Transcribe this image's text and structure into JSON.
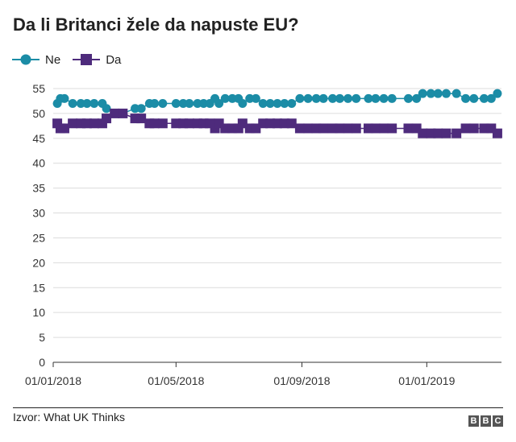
{
  "title": "Da li Britanci žele da napuste EU?",
  "source": "Izvor: What UK Thinks",
  "logo": [
    "B",
    "B",
    "C"
  ],
  "chart_data": {
    "type": "line",
    "title": "Da li Britanci žele da napuste EU?",
    "xlabel": "",
    "ylabel": "",
    "x_range": [
      "2018-01-01",
      "2019-03-15"
    ],
    "ylim": [
      0,
      55
    ],
    "yticks": [
      0,
      5,
      10,
      15,
      20,
      25,
      30,
      35,
      40,
      45,
      50,
      55
    ],
    "xticks": [
      {
        "date": "2018-01-01",
        "label": "01/01/2018"
      },
      {
        "date": "2018-05-01",
        "label": "01/05/2018"
      },
      {
        "date": "2018-09-01",
        "label": "01/09/2018"
      },
      {
        "date": "2019-01-01",
        "label": "01/01/2019"
      }
    ],
    "gridlines": true,
    "legend_position": "top-left",
    "series": [
      {
        "name": "Ne",
        "color": "#1b8ca6",
        "marker": "circle",
        "points": [
          [
            "2018-01-05",
            52
          ],
          [
            "2018-01-08",
            53
          ],
          [
            "2018-01-12",
            53
          ],
          [
            "2018-01-20",
            52
          ],
          [
            "2018-01-28",
            52
          ],
          [
            "2018-02-03",
            52
          ],
          [
            "2018-02-10",
            52
          ],
          [
            "2018-02-18",
            52
          ],
          [
            "2018-02-22",
            51
          ],
          [
            "2018-03-02",
            50
          ],
          [
            "2018-03-10",
            50
          ],
          [
            "2018-03-22",
            51
          ],
          [
            "2018-03-28",
            51
          ],
          [
            "2018-04-05",
            52
          ],
          [
            "2018-04-10",
            52
          ],
          [
            "2018-04-18",
            52
          ],
          [
            "2018-05-01",
            52
          ],
          [
            "2018-05-08",
            52
          ],
          [
            "2018-05-14",
            52
          ],
          [
            "2018-05-22",
            52
          ],
          [
            "2018-05-28",
            52
          ],
          [
            "2018-06-03",
            52
          ],
          [
            "2018-06-08",
            53
          ],
          [
            "2018-06-12",
            52
          ],
          [
            "2018-06-18",
            53
          ],
          [
            "2018-06-25",
            53
          ],
          [
            "2018-07-01",
            53
          ],
          [
            "2018-07-05",
            52
          ],
          [
            "2018-07-12",
            53
          ],
          [
            "2018-07-18",
            53
          ],
          [
            "2018-07-25",
            52
          ],
          [
            "2018-08-01",
            52
          ],
          [
            "2018-08-08",
            52
          ],
          [
            "2018-08-15",
            52
          ],
          [
            "2018-08-22",
            52
          ],
          [
            "2018-08-30",
            53
          ],
          [
            "2018-09-07",
            53
          ],
          [
            "2018-09-15",
            53
          ],
          [
            "2018-09-22",
            53
          ],
          [
            "2018-10-01",
            53
          ],
          [
            "2018-10-08",
            53
          ],
          [
            "2018-10-16",
            53
          ],
          [
            "2018-10-24",
            53
          ],
          [
            "2018-11-05",
            53
          ],
          [
            "2018-11-12",
            53
          ],
          [
            "2018-11-20",
            53
          ],
          [
            "2018-11-28",
            53
          ],
          [
            "2018-12-14",
            53
          ],
          [
            "2018-12-22",
            53
          ],
          [
            "2018-12-28",
            54
          ],
          [
            "2019-01-05",
            54
          ],
          [
            "2019-01-12",
            54
          ],
          [
            "2019-01-20",
            54
          ],
          [
            "2019-01-30",
            54
          ],
          [
            "2019-02-08",
            53
          ],
          [
            "2019-02-16",
            53
          ],
          [
            "2019-02-26",
            53
          ],
          [
            "2019-03-05",
            53
          ],
          [
            "2019-03-11",
            54
          ]
        ]
      },
      {
        "name": "Da",
        "color": "#4e2b7c",
        "marker": "square",
        "points": [
          [
            "2018-01-05",
            48
          ],
          [
            "2018-01-08",
            47
          ],
          [
            "2018-01-12",
            47
          ],
          [
            "2018-01-20",
            48
          ],
          [
            "2018-01-28",
            48
          ],
          [
            "2018-02-03",
            48
          ],
          [
            "2018-02-10",
            48
          ],
          [
            "2018-02-18",
            48
          ],
          [
            "2018-02-22",
            49
          ],
          [
            "2018-03-02",
            50
          ],
          [
            "2018-03-10",
            50
          ],
          [
            "2018-03-22",
            49
          ],
          [
            "2018-03-28",
            49
          ],
          [
            "2018-04-05",
            48
          ],
          [
            "2018-04-10",
            48
          ],
          [
            "2018-04-18",
            48
          ],
          [
            "2018-05-01",
            48
          ],
          [
            "2018-05-08",
            48
          ],
          [
            "2018-05-14",
            48
          ],
          [
            "2018-05-22",
            48
          ],
          [
            "2018-05-28",
            48
          ],
          [
            "2018-06-03",
            48
          ],
          [
            "2018-06-08",
            47
          ],
          [
            "2018-06-12",
            48
          ],
          [
            "2018-06-18",
            47
          ],
          [
            "2018-06-25",
            47
          ],
          [
            "2018-07-01",
            47
          ],
          [
            "2018-07-05",
            48
          ],
          [
            "2018-07-12",
            47
          ],
          [
            "2018-07-18",
            47
          ],
          [
            "2018-07-25",
            48
          ],
          [
            "2018-08-01",
            48
          ],
          [
            "2018-08-08",
            48
          ],
          [
            "2018-08-15",
            48
          ],
          [
            "2018-08-22",
            48
          ],
          [
            "2018-08-30",
            47
          ],
          [
            "2018-09-07",
            47
          ],
          [
            "2018-09-15",
            47
          ],
          [
            "2018-09-22",
            47
          ],
          [
            "2018-10-01",
            47
          ],
          [
            "2018-10-08",
            47
          ],
          [
            "2018-10-16",
            47
          ],
          [
            "2018-10-24",
            47
          ],
          [
            "2018-11-05",
            47
          ],
          [
            "2018-11-12",
            47
          ],
          [
            "2018-11-20",
            47
          ],
          [
            "2018-11-28",
            47
          ],
          [
            "2018-12-14",
            47
          ],
          [
            "2018-12-22",
            47
          ],
          [
            "2018-12-28",
            46
          ],
          [
            "2019-01-05",
            46
          ],
          [
            "2019-01-12",
            46
          ],
          [
            "2019-01-20",
            46
          ],
          [
            "2019-01-30",
            46
          ],
          [
            "2019-02-08",
            47
          ],
          [
            "2019-02-16",
            47
          ],
          [
            "2019-02-26",
            47
          ],
          [
            "2019-03-05",
            47
          ],
          [
            "2019-03-11",
            46
          ]
        ]
      }
    ]
  }
}
